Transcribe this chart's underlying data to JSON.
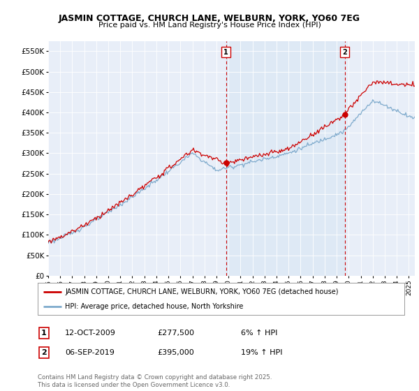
{
  "title_line1": "JASMIN COTTAGE, CHURCH LANE, WELBURN, YORK, YO60 7EG",
  "title_line2": "Price paid vs. HM Land Registry's House Price Index (HPI)",
  "bg_color": "#e8eef8",
  "shade_color": "#dce8f5",
  "line1_color": "#cc0000",
  "line2_color": "#7eaacc",
  "vline_color": "#cc0000",
  "ylim": [
    0,
    575000
  ],
  "yticks": [
    0,
    50000,
    100000,
    150000,
    200000,
    250000,
    300000,
    350000,
    400000,
    450000,
    500000,
    550000
  ],
  "ytick_labels": [
    "£0",
    "£50K",
    "£100K",
    "£150K",
    "£200K",
    "£250K",
    "£300K",
    "£350K",
    "£400K",
    "£450K",
    "£500K",
    "£550K"
  ],
  "sale1_date": "12-OCT-2009",
  "sale1_price": 277500,
  "sale1_pct": "6%",
  "sale1_x": 2009.79,
  "sale1_y": 277500,
  "sale2_date": "06-SEP-2019",
  "sale2_price": 395000,
  "sale2_pct": "19%",
  "sale2_x": 2019.67,
  "sale2_y": 395000,
  "legend_line1": "JASMIN COTTAGE, CHURCH LANE, WELBURN, YORK, YO60 7EG (detached house)",
  "legend_line2": "HPI: Average price, detached house, North Yorkshire",
  "footnote": "Contains HM Land Registry data © Crown copyright and database right 2025.\nThis data is licensed under the Open Government Licence v3.0.",
  "xlim_start": 1995,
  "xlim_end": 2025.5
}
